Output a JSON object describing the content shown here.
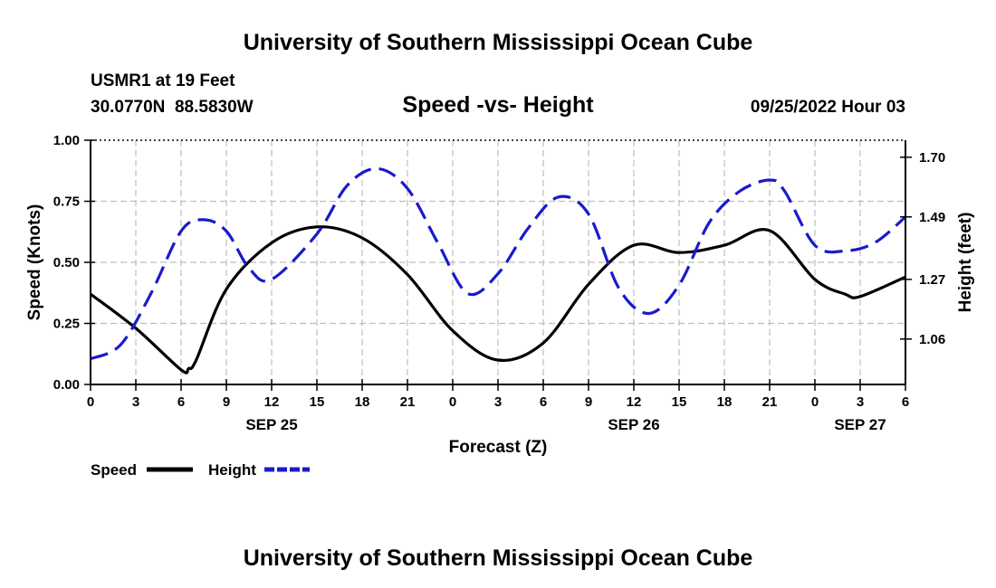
{
  "chart_data": {
    "type": "line",
    "header_title": "University of Southern Mississippi Ocean Cube",
    "footer_title": "University of Southern Mississippi Ocean Cube",
    "station": "USMR1 at 19 Feet",
    "location": "30.0770N  88.5830W",
    "title": "Speed -vs- Height",
    "datetime": "09/25/2022 Hour 03",
    "xlabel": "Forecast (Z)",
    "ylabel_left": "Speed (Knots)",
    "ylabel_right": "Height (feet)",
    "x_range": [
      0,
      54
    ],
    "x_tick_hours": [
      0,
      3,
      6,
      9,
      12,
      15,
      18,
      21,
      24,
      27,
      30,
      33,
      36,
      39,
      42,
      45,
      48,
      51,
      54
    ],
    "x_tick_labels": [
      "0",
      "3",
      "6",
      "9",
      "12",
      "15",
      "18",
      "21",
      "0",
      "3",
      "6",
      "9",
      "12",
      "15",
      "18",
      "21",
      "0",
      "3",
      "6"
    ],
    "date_labels": [
      {
        "text": "SEP 25",
        "hour": 12
      },
      {
        "text": "SEP 26",
        "hour": 36
      },
      {
        "text": "SEP 27",
        "hour": 51
      }
    ],
    "left_axis": {
      "range": [
        0,
        1
      ],
      "ticks": [
        0,
        0.25,
        0.5,
        0.75,
        1.0
      ],
      "tick_labels": [
        "0.00",
        "0.25",
        "0.50",
        "0.75",
        "1.00"
      ]
    },
    "right_axis": {
      "range": [
        0.9,
        1.76
      ],
      "ticks": [
        1.06,
        1.27,
        1.49,
        1.7
      ],
      "tick_labels": [
        "1.06",
        "1.27",
        "1.49",
        "1.70"
      ]
    },
    "grid": true,
    "series": [
      {
        "name": "Speed",
        "axis": "left",
        "color": "#000000",
        "style": "solid",
        "x": [
          0,
          3,
          6,
          6.5,
          7,
          9,
          12,
          15,
          18,
          21,
          24,
          27,
          30,
          33,
          36,
          39,
          42,
          45,
          48,
          50,
          51,
          54
        ],
        "y": [
          0.37,
          0.23,
          0.06,
          0.065,
          0.1,
          0.39,
          0.58,
          0.645,
          0.6,
          0.45,
          0.22,
          0.1,
          0.17,
          0.41,
          0.57,
          0.54,
          0.57,
          0.63,
          0.43,
          0.37,
          0.36,
          0.44
        ]
      },
      {
        "name": "Height",
        "axis": "right",
        "color": "#1a1acc",
        "style": "dashed",
        "x": [
          0,
          2,
          4,
          6,
          7.5,
          9,
          10.5,
          12,
          15,
          17,
          19,
          21,
          23,
          25,
          27,
          29,
          31,
          33,
          35,
          37,
          39,
          41,
          43,
          45,
          46,
          48,
          50,
          52,
          54
        ],
        "y": [
          0.99,
          1.04,
          1.22,
          1.44,
          1.48,
          1.44,
          1.31,
          1.27,
          1.43,
          1.6,
          1.66,
          1.59,
          1.4,
          1.22,
          1.29,
          1.45,
          1.56,
          1.5,
          1.24,
          1.15,
          1.25,
          1.47,
          1.58,
          1.62,
          1.58,
          1.39,
          1.37,
          1.4,
          1.49
        ]
      }
    ],
    "legend": [
      {
        "label": "Speed",
        "color": "#000000",
        "style": "solid"
      },
      {
        "label": "Height",
        "color": "#1a1acc",
        "style": "dashed"
      }
    ],
    "legend_position": "bottom-left"
  }
}
